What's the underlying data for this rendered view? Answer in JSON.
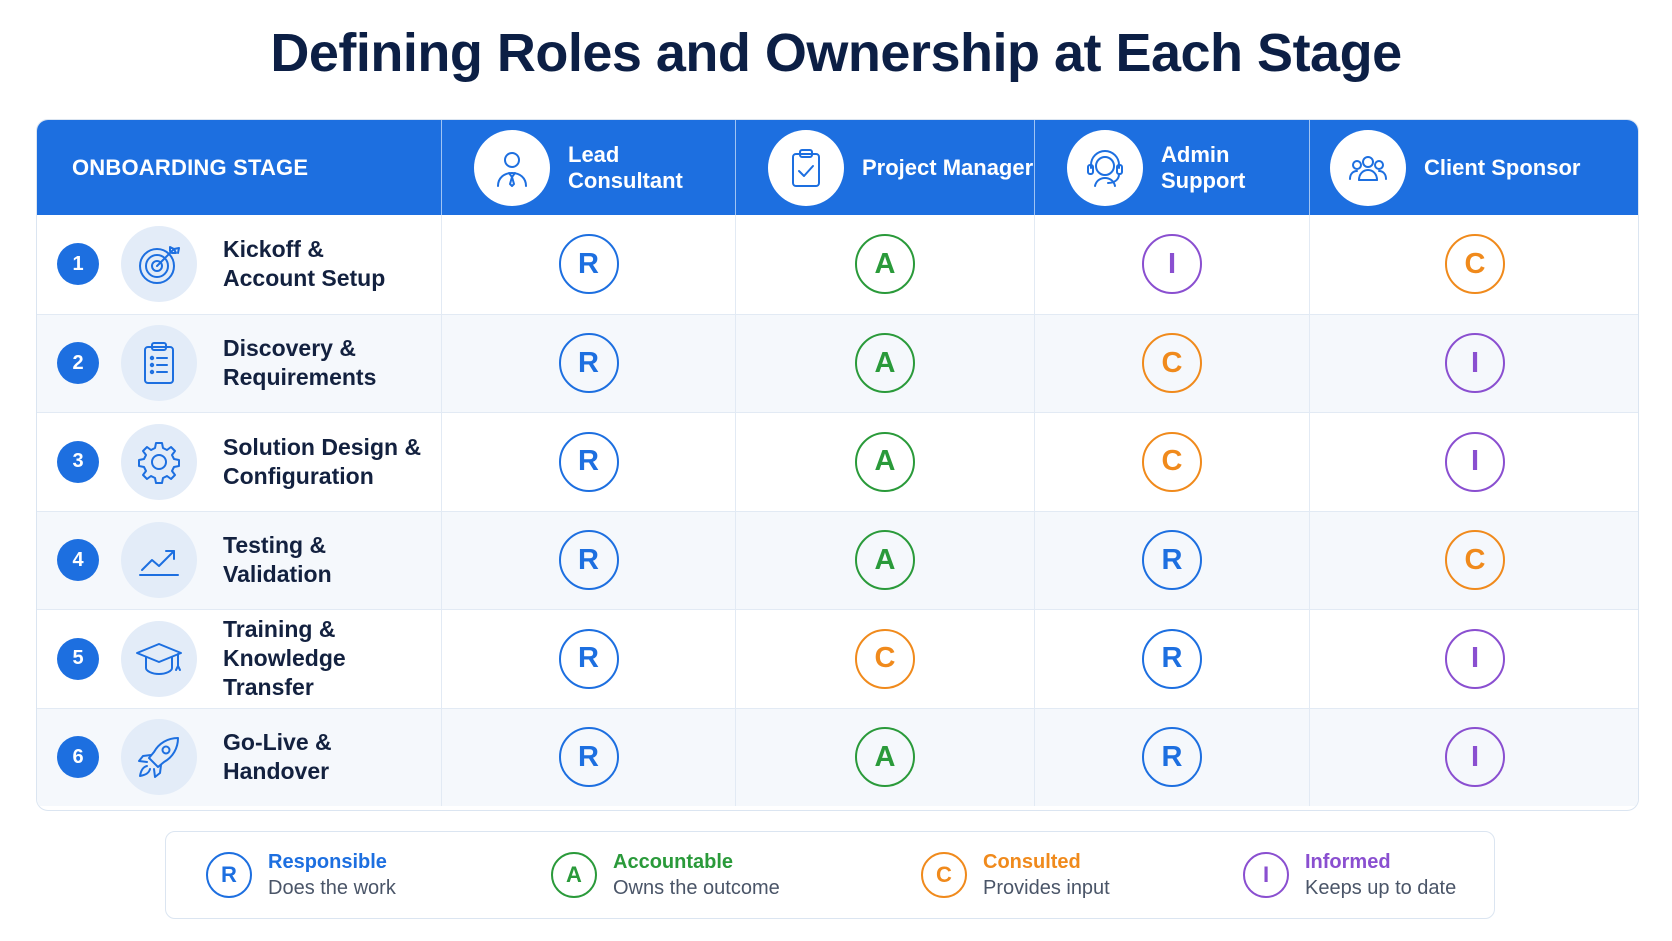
{
  "title": "Defining Roles and Ownership at Each Stage",
  "header": {
    "stage_label": "ONBOARDING STAGE",
    "roles": [
      {
        "label": "Lead Consultant",
        "icon": "consultant-icon"
      },
      {
        "label": "Project Manager",
        "icon": "clipboard-check-icon"
      },
      {
        "label": "Admin Support",
        "icon": "headset-icon"
      },
      {
        "label": "Client Sponsor",
        "icon": "group-icon"
      }
    ]
  },
  "stages": [
    {
      "num": "1",
      "label": "Kickoff &\nAccount Setup",
      "icon": "target-icon",
      "values": [
        "R",
        "A",
        "I",
        "C"
      ]
    },
    {
      "num": "2",
      "label": "Discovery &\nRequirements",
      "icon": "checklist-icon",
      "values": [
        "R",
        "A",
        "C",
        "I"
      ]
    },
    {
      "num": "3",
      "label": "Solution Design &\nConfiguration",
      "icon": "gear-icon",
      "values": [
        "R",
        "A",
        "C",
        "I"
      ]
    },
    {
      "num": "4",
      "label": "Testing &\nValidation",
      "icon": "trend-chart-icon",
      "values": [
        "R",
        "A",
        "R",
        "C"
      ]
    },
    {
      "num": "5",
      "label": "Training &\nKnowledge Transfer",
      "icon": "graduation-cap-icon",
      "values": [
        "R",
        "C",
        "R",
        "I"
      ]
    },
    {
      "num": "6",
      "label": "Go-Live &\nHandover",
      "icon": "rocket-icon",
      "values": [
        "R",
        "A",
        "R",
        "I"
      ]
    }
  ],
  "legend": [
    {
      "letter": "R",
      "name": "Responsible",
      "desc": "Does the work",
      "color": "#1d6fe0"
    },
    {
      "letter": "A",
      "name": "Accountable",
      "desc": "Owns the outcome",
      "color": "#2a9a3a"
    },
    {
      "letter": "C",
      "name": "Consulted",
      "desc": "Provides input",
      "color": "#f08a1c"
    },
    {
      "letter": "I",
      "name": "Informed",
      "desc": "Keeps up to date",
      "color": "#8a4fd0"
    }
  ]
}
